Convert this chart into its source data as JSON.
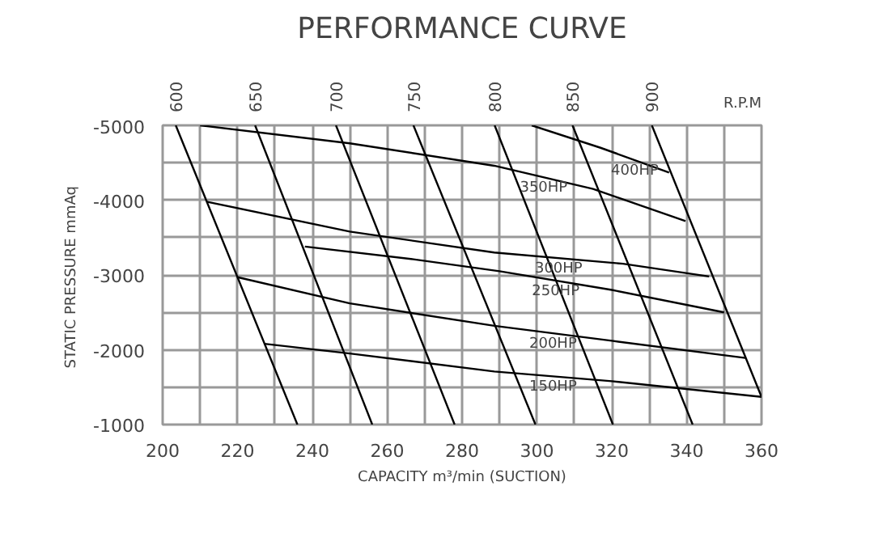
{
  "chart_data": {
    "type": "line",
    "title": "PERFORMANCE CURVE",
    "xlabel": "CAPACITY m³/min (SUCTION)",
    "ylabel": "STATIC PRESSURE  mmAq",
    "annotations": [
      "R.P.M"
    ],
    "xlim": [
      200,
      360
    ],
    "ylim": [
      -1000,
      -5000
    ],
    "xticks": [
      200,
      {
        "value": 210,
        "label": null
      },
      220,
      {
        "value": 230,
        "label": null
      },
      240,
      {
        "value": 250,
        "label": null
      },
      260,
      {
        "value": 270,
        "label": null
      },
      280,
      {
        "value": 290,
        "label": null
      },
      300,
      {
        "value": 310,
        "label": null
      },
      320,
      {
        "value": 330,
        "label": null
      },
      340,
      {
        "value": 350,
        "label": null
      },
      360
    ],
    "yticks": [
      -5000,
      {
        "value": -4500,
        "label": null
      },
      -4000,
      {
        "value": -3500,
        "label": null
      },
      -3000,
      {
        "value": -2500,
        "label": null
      },
      -2000,
      {
        "value": -1500,
        "label": null
      },
      -1000
    ],
    "grid": true,
    "series": [
      {
        "name": "600",
        "color": "#000000",
        "x": [
          203.5,
          236
        ],
        "values": [
          -5000,
          -1000
        ]
      },
      {
        "name": "650",
        "color": "#000000",
        "x": [
          224.7,
          256
        ],
        "values": [
          -5000,
          -1000
        ]
      },
      {
        "name": "700",
        "color": "#000000",
        "x": [
          246.3,
          278
        ],
        "values": [
          -5000,
          -1000
        ]
      },
      {
        "name": "750",
        "color": "#000000",
        "x": [
          267,
          299.6
        ],
        "values": [
          -5000,
          -1000
        ]
      },
      {
        "name": "800",
        "color": "#000000",
        "x": [
          288.7,
          320.3
        ],
        "values": [
          -5000,
          -1000
        ]
      },
      {
        "name": "850",
        "color": "#000000",
        "x": [
          309.5,
          341.6
        ],
        "values": [
          -5000,
          -1000
        ]
      },
      {
        "name": "900",
        "color": "#000000",
        "x": [
          330.7,
          360
        ],
        "values": [
          -5000,
          -1370
        ]
      },
      {
        "name": "400HP",
        "color": "#000000",
        "x": [
          298.6,
          317,
          335.3
        ],
        "values": [
          -5000,
          -4700,
          -4370
        ]
      },
      {
        "name": "350HP",
        "color": "#000000",
        "x": [
          210,
          250,
          288.6,
          315,
          339.7
        ],
        "values": [
          -5000,
          -4760,
          -4460,
          -4150,
          -3720
        ]
      },
      {
        "name": "300HP",
        "color": "#000000",
        "x": [
          211.7,
          250,
          288.6,
          323,
          346
        ],
        "values": [
          -3980,
          -3580,
          -3300,
          -3150,
          -2980
        ]
      },
      {
        "name": "250HP",
        "color": "#000000",
        "x": [
          238,
          267,
          290,
          320,
          350
        ],
        "values": [
          -3380,
          -3210,
          -3050,
          -2800,
          -2500
        ]
      },
      {
        "name": "200HP",
        "color": "#000000",
        "x": [
          220,
          250,
          288.6,
          320,
          355.7
        ],
        "values": [
          -2970,
          -2620,
          -2320,
          -2120,
          -1890
        ]
      },
      {
        "name": "150HP",
        "color": "#000000",
        "x": [
          227.2,
          250,
          288.6,
          320,
          360
        ],
        "values": [
          -2080,
          -1950,
          -1710,
          -1580,
          -1370
        ]
      }
    ]
  }
}
